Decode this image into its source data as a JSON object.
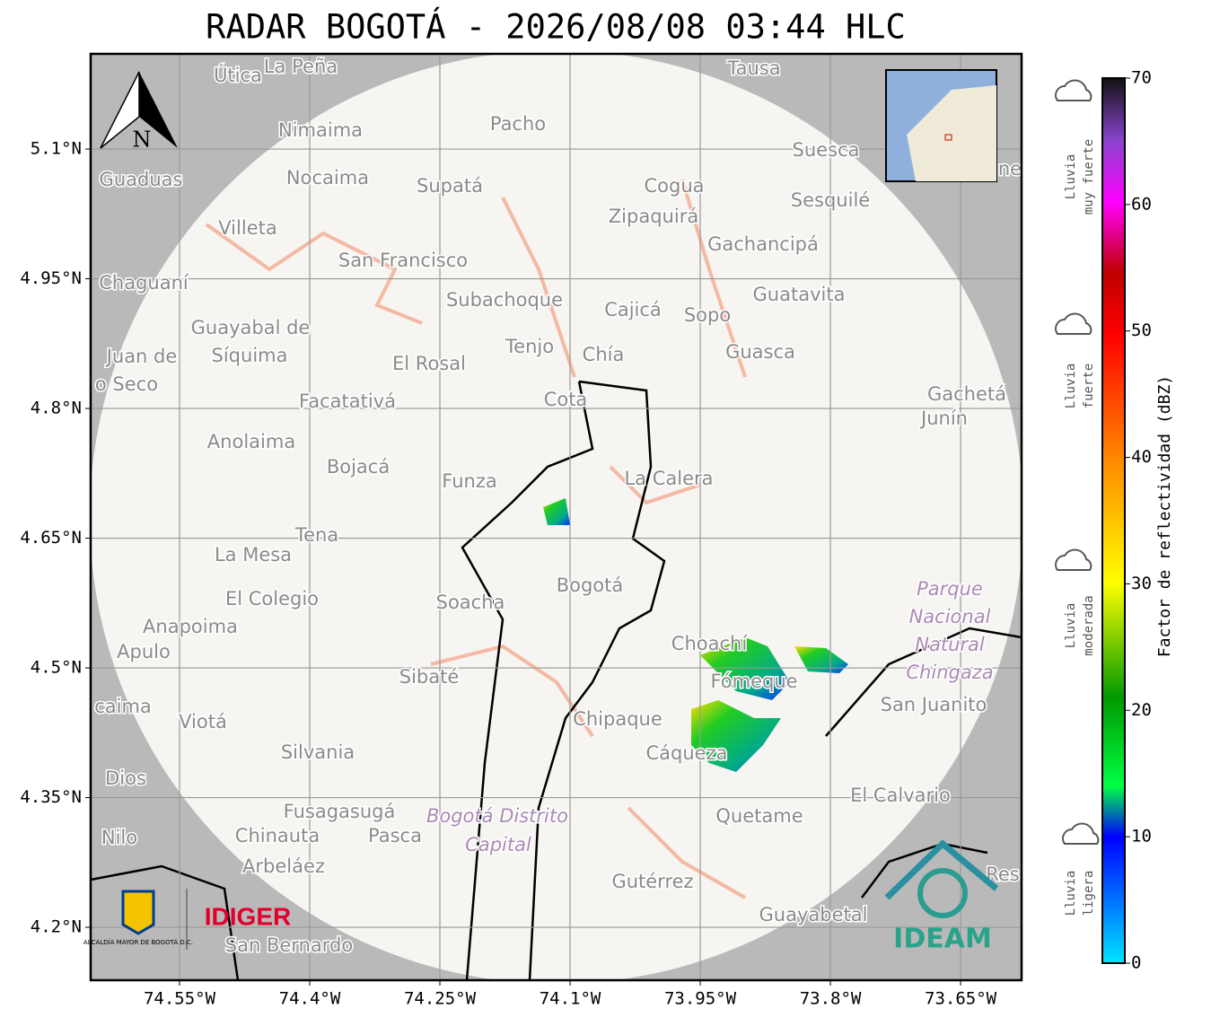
{
  "title": "RADAR BOGOTÁ - 2026/08/08 03:44 HLC",
  "map": {
    "xlim": [
      -74.6524,
      -73.5797
    ],
    "ylim": [
      4.1388,
      5.2101
    ],
    "xticks": [
      {
        "value": -74.55,
        "label": "74.55°W"
      },
      {
        "value": -74.4,
        "label": "74.4°W"
      },
      {
        "value": -74.25,
        "label": "74.25°W"
      },
      {
        "value": -74.1,
        "label": "74.1°W"
      },
      {
        "value": -73.95,
        "label": "73.95°W"
      },
      {
        "value": -73.8,
        "label": "73.8°W"
      },
      {
        "value": -73.65,
        "label": "73.65°W"
      }
    ],
    "yticks": [
      {
        "value": 5.1,
        "label": "5.1°N"
      },
      {
        "value": 4.95,
        "label": "4.95°N"
      },
      {
        "value": 4.8,
        "label": "4.8°N"
      },
      {
        "value": 4.65,
        "label": "4.65°N"
      },
      {
        "value": 4.5,
        "label": "4.5°N"
      },
      {
        "value": 4.35,
        "label": "4.35°N"
      },
      {
        "value": 4.2,
        "label": "4.2°N"
      }
    ],
    "grid": true,
    "compass": "N",
    "place_names": [
      "Útica",
      "La Peña",
      "Tausa",
      "Pacho",
      "Nimaima",
      "Guaduas",
      "Nocaima",
      "Supatá",
      "Cogua",
      "Suesca",
      "Sesquilé",
      "Villeta",
      "Zipaquirá",
      "Gachancipá",
      "San Francisco",
      "Chaguaní",
      "Subachoque",
      "Cajicá",
      "Sopo",
      "Guatavita",
      "Guayabal de",
      "Síquima",
      "Juan de",
      "o Seco",
      "Tenjo",
      "Chía",
      "El Rosal",
      "Guasca",
      "Facatativá",
      "Cota",
      "Gachetá",
      "Junín",
      "Anolaima",
      "Bojacá",
      "Funza",
      "La Calera",
      "Tena",
      "La Mesa",
      "Soacha",
      "Bogotá",
      "El Colegio",
      "Anapoima",
      "Apulo",
      "Choachí",
      "Fómeque",
      "Sibaté",
      "San Juanito",
      "caima",
      "Viotá",
      "Chipaque",
      "Cáqueza",
      "Silvania",
      "Dios",
      "El Calvario",
      "Fusagasugá",
      "Quetame",
      "Nilo",
      "Chinauta",
      "Pasca",
      "Arbeláez",
      "Gutérrez",
      "Res",
      "Guayabetal",
      "San Bernardo",
      "ne"
    ],
    "park_names": [
      "Parque",
      "Nacional",
      "Natural",
      "Chingaza",
      "Bogotá Distrito",
      "Capital"
    ]
  },
  "logos": {
    "alcaldia": "ALCALDÍA MAYOR DE BOGOTÁ D.C.",
    "idiger": "IDIGER",
    "ideam": "IDEAM"
  },
  "colorbar": {
    "label": "Factor de reflectividad (dBZ)",
    "lim": [
      0,
      70
    ],
    "ticks": [
      0,
      10,
      20,
      30,
      40,
      50,
      60,
      70
    ]
  },
  "rain_levels": [
    [
      "Lluvia",
      "muy fuerte"
    ],
    [
      "Lluvia",
      "fuerte"
    ],
    [
      "Lluvia",
      "moderada"
    ],
    [
      "Lluvia",
      "ligera"
    ]
  ]
}
